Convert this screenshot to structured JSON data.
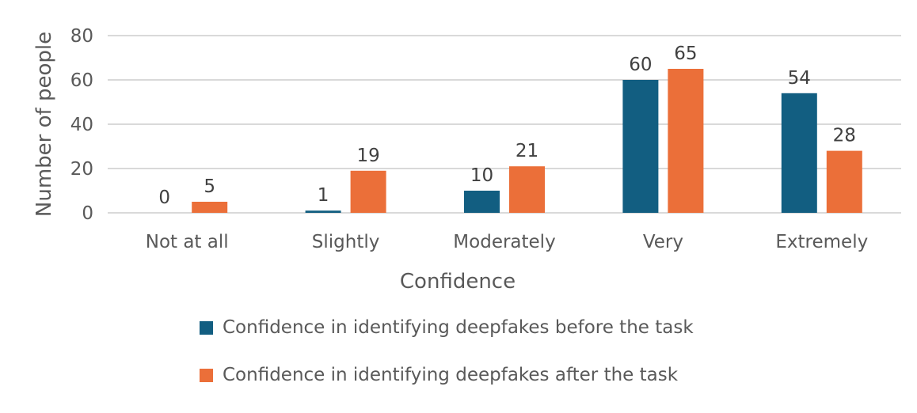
{
  "chart_data": {
    "type": "bar",
    "title": "",
    "xlabel": "Confidence",
    "ylabel": "Number of people",
    "categories": [
      "Not at all",
      "Slightly",
      "Moderately",
      "Very",
      "Extremely"
    ],
    "series": [
      {
        "name": "Confidence in identifying deepfakes before the task",
        "color": "#125E81",
        "values": [
          0,
          1,
          10,
          60,
          54
        ]
      },
      {
        "name": "Confidence in identifying deepfakes after the task",
        "color": "#EB6F39",
        "values": [
          5,
          19,
          21,
          65,
          28
        ]
      }
    ],
    "ylim": [
      0,
      80
    ],
    "yticks": [
      0,
      20,
      40,
      60,
      80
    ],
    "grid": true,
    "gridline_color": "#D9D9D9",
    "legend_position": "bottom",
    "data_labels": true
  }
}
